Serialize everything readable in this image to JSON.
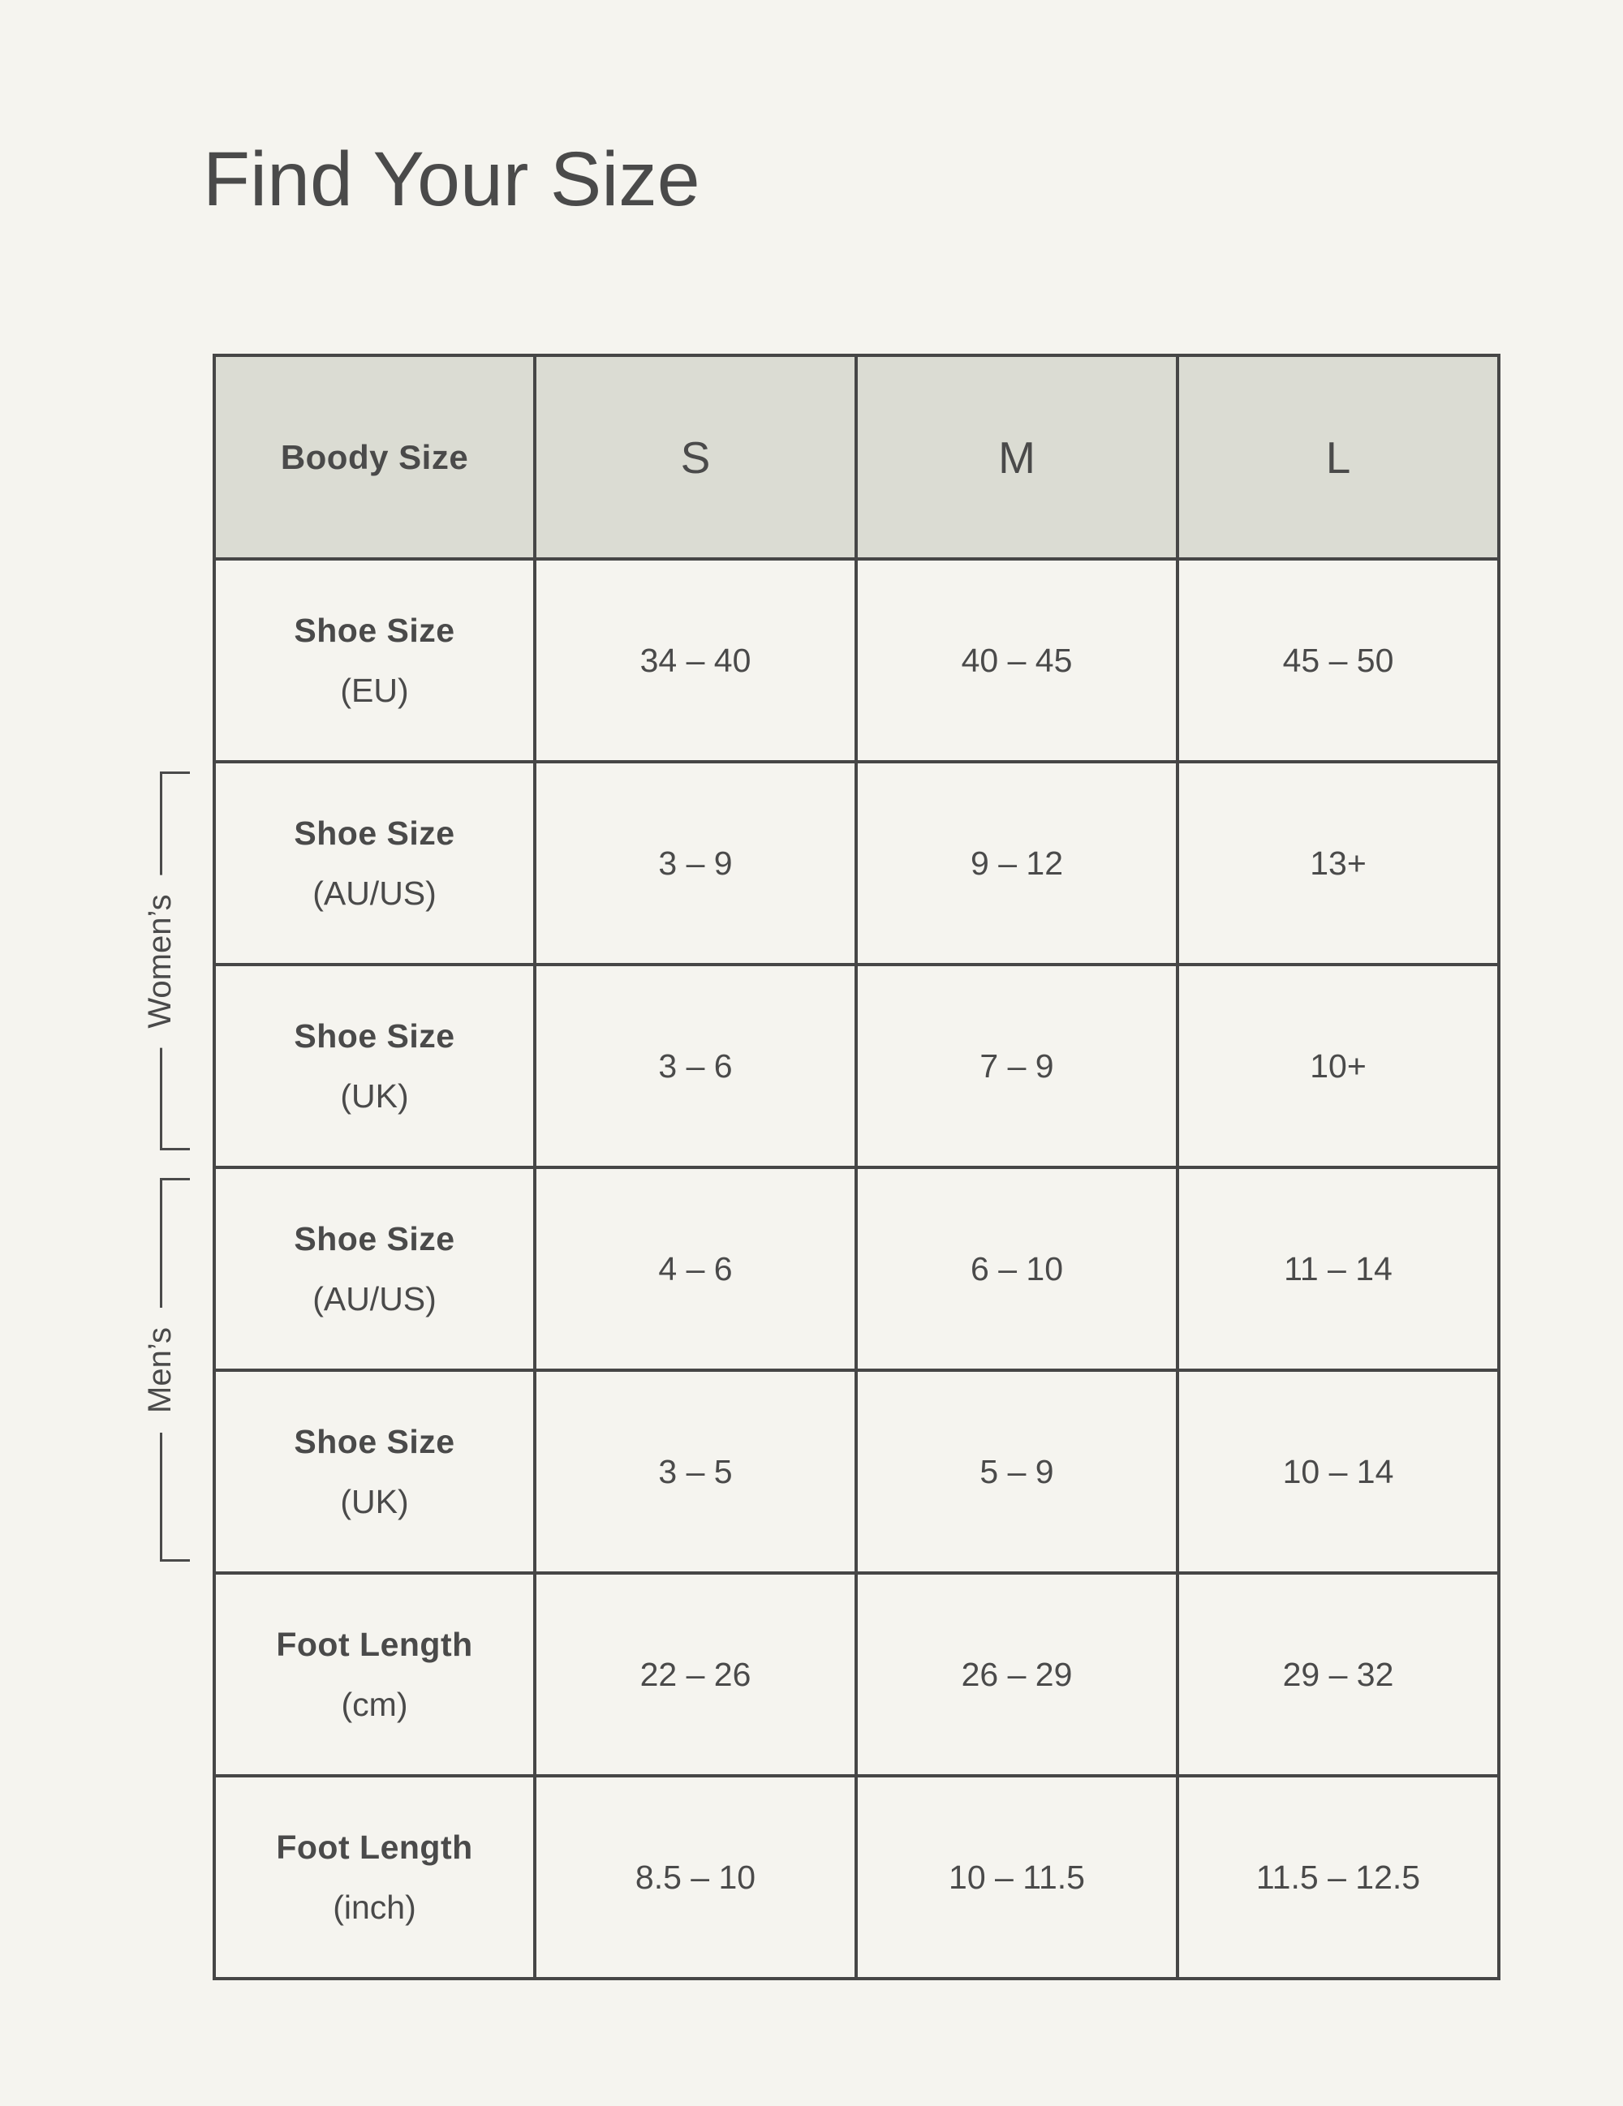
{
  "page": {
    "title": "Find Your Size",
    "background_color": "#f5f4ef",
    "text_color": "#4a4a4a"
  },
  "brackets": {
    "womens": "Women’s",
    "mens": "Men’s"
  },
  "table": {
    "border_color": "#464646",
    "header_bg_color": "#dbdcd3",
    "header": {
      "label": "Boody Size",
      "sizes": [
        "S",
        "M",
        "L"
      ]
    },
    "rows": [
      {
        "label": "Shoe Size",
        "unit": "(EU)",
        "group": "",
        "values": [
          "34 – 40",
          "40 – 45",
          "45 – 50"
        ]
      },
      {
        "label": "Shoe Size",
        "unit": "(AU/US)",
        "group": "womens",
        "values": [
          "3 – 9",
          "9 – 12",
          "13+"
        ]
      },
      {
        "label": "Shoe Size",
        "unit": "(UK)",
        "group": "womens",
        "values": [
          "3 – 6",
          "7 – 9",
          "10+"
        ]
      },
      {
        "label": "Shoe Size",
        "unit": "(AU/US)",
        "group": "mens",
        "values": [
          "4 – 6",
          "6 – 10",
          "11 – 14"
        ]
      },
      {
        "label": "Shoe Size",
        "unit": "(UK)",
        "group": "mens",
        "values": [
          "3 – 5",
          "5 – 9",
          "10 – 14"
        ]
      },
      {
        "label": "Foot Length",
        "unit": "(cm)",
        "group": "",
        "values": [
          "22 – 26",
          "26 – 29",
          "29 – 32"
        ]
      },
      {
        "label": "Foot Length",
        "unit": "(inch)",
        "group": "",
        "values": [
          "8.5 – 10",
          "10 – 11.5",
          "11.5 – 12.5"
        ]
      }
    ]
  }
}
